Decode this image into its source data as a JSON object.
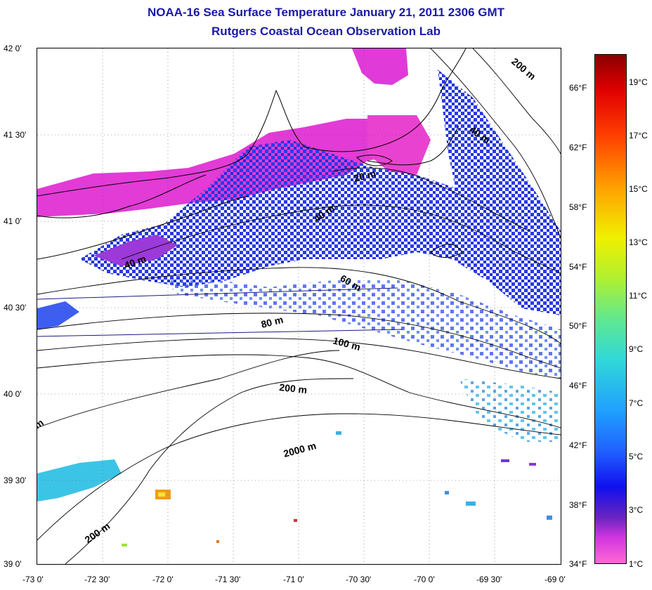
{
  "title": "NOAA-16 Sea Surface Temperature January 21, 2011 2306 GMT",
  "subtitle": "Rutgers Coastal Ocean Observation Lab",
  "axes": {
    "lon_labels": [
      "-73 0'",
      "-72 30'",
      "-72 0'",
      "-71 30'",
      "-71 0'",
      "-70 30'",
      "-70 0'",
      "-69 30'",
      "-69 0'"
    ],
    "lat_labels": [
      "42 0'",
      "41 30'",
      "41 0'",
      "40 30'",
      "40 0'",
      "39 30'",
      "39 0'"
    ],
    "lon_range": [
      -73,
      -69
    ],
    "lat_range": [
      39,
      42
    ]
  },
  "contours": [
    "20 m",
    "40 m",
    "40 m",
    "40 m",
    "60 m",
    "80 m",
    "100 m",
    "200 m",
    "200 m",
    "200 m",
    "2000 m",
    "m"
  ],
  "colorbar": {
    "fahrenheit": [
      "66°F",
      "62°F",
      "58°F",
      "54°F",
      "50°F",
      "46°F",
      "42°F",
      "38°F",
      "34°F"
    ],
    "celsius": [
      "19°C",
      "17°C",
      "15°C",
      "13°C",
      "11°C",
      "9°C",
      "7°C",
      "5°C",
      "3°C",
      "1°C"
    ],
    "range_c": [
      1,
      20
    ]
  }
}
